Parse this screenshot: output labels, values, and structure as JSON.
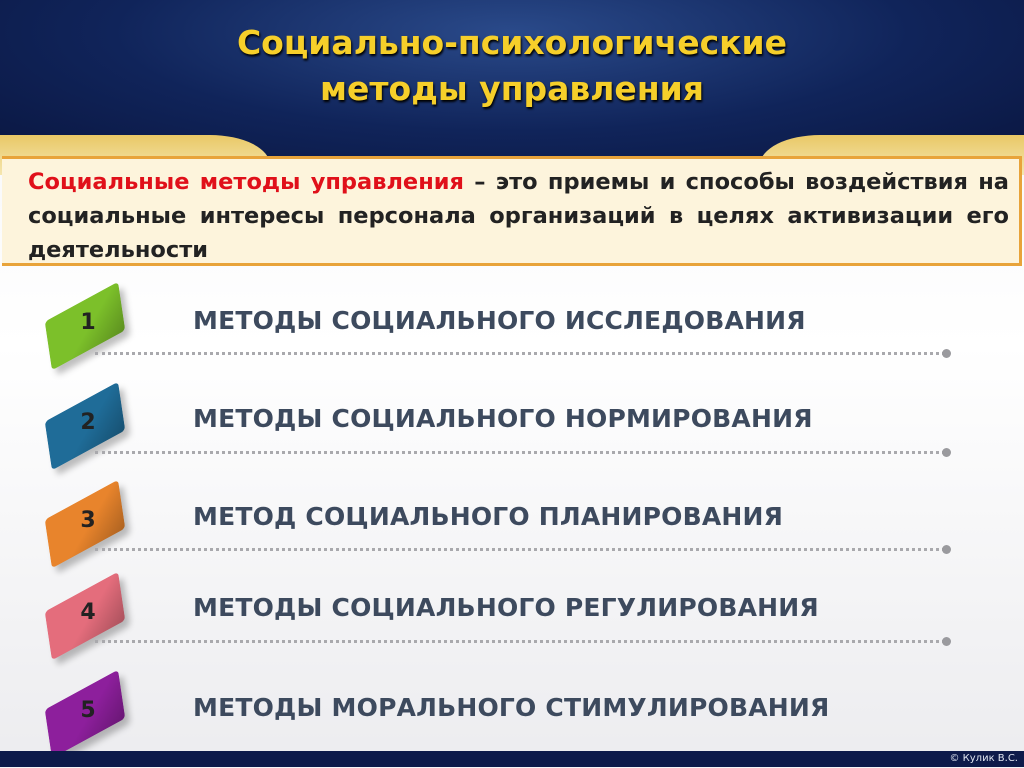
{
  "title": {
    "line1": "Социально-психологические",
    "line2": "методы управления"
  },
  "definition": {
    "term": "Социальные методы управления",
    "text": " – это приемы и способы воздействия на социальные интересы персонала организаций в целях активизации его деятельности"
  },
  "items": [
    {
      "number": "1",
      "label": "МЕТОДЫ СОЦИАЛЬНОГО ИССЛЕДОВАНИЯ",
      "color": "#7cc02a"
    },
    {
      "number": "2",
      "label": "МЕТОДЫ СОЦИАЛЬНОГО НОРМИРОВАНИЯ",
      "color": "#1f6c98"
    },
    {
      "number": "3",
      "label": "МЕТОД СОЦИАЛЬНОГО ПЛАНИРОВАНИЯ",
      "color": "#e8842c"
    },
    {
      "number": "4",
      "label": "МЕТОДЫ СОЦИАЛЬНОГО РЕГУЛИРОВАНИЯ",
      "color": "#e46d7c"
    },
    {
      "number": "5",
      "label": "МЕТОДЫ МОРАЛЬНОГО СТИМУЛИРОВАНИЯ",
      "color": "#8d1f9c"
    }
  ],
  "footer": {
    "copyright": "© Кулик В.С."
  }
}
